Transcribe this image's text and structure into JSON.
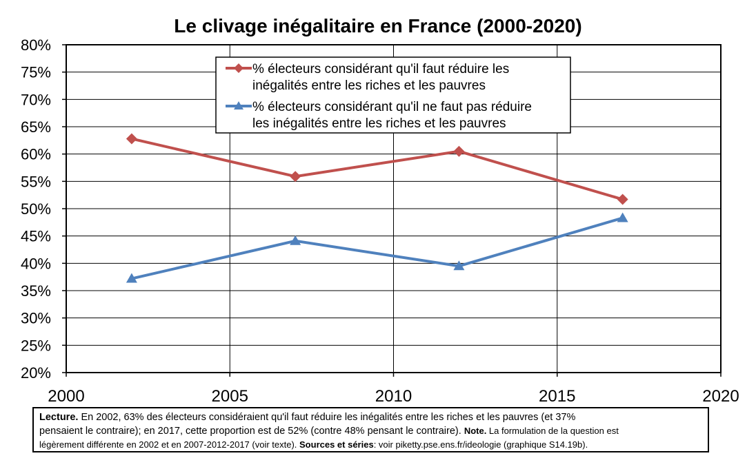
{
  "chart_data": {
    "type": "line",
    "title": "Le clivage inégalitaire en France (2000-2020)",
    "xlim": [
      2000,
      2020
    ],
    "ylim": [
      20,
      80
    ],
    "x_ticks": [
      "2000",
      "2005",
      "2010",
      "2015",
      "2020"
    ],
    "y_ticks": [
      "20%",
      "25%",
      "30%",
      "35%",
      "40%",
      "45%",
      "50%",
      "55%",
      "60%",
      "65%",
      "70%",
      "75%",
      "80%"
    ],
    "grid": true,
    "legend_position": "top-center",
    "series": [
      {
        "name": "% électeurs considérant qu'il faut réduire les inégalités entre les riches et les pauvres",
        "name_lines": [
          "% électeurs considérant qu'il faut réduire les",
          "inégalités entre les riches et les pauvres"
        ],
        "marker": "diamond",
        "color": "#C0504D",
        "x": [
          2002,
          2007,
          2012,
          2017
        ],
        "y": [
          62.8,
          55.9,
          60.5,
          51.7
        ]
      },
      {
        "name": "% électeurs considérant qu'il ne faut pas réduire les inégalités entre les riches et les pauvres",
        "name_lines": [
          "% électeurs considérant qu'il ne faut pas réduire",
          "les inégalités entre les riches et les pauvres"
        ],
        "marker": "triangle",
        "color": "#4F81BD",
        "x": [
          2002,
          2007,
          2012,
          2017
        ],
        "y": [
          37.2,
          44.1,
          39.5,
          48.3
        ]
      }
    ]
  },
  "note": {
    "lecture_label": "Lecture.",
    "lecture_text": " En 2002, 63% des électeurs considéraient qu'il faut réduire les inégalités entre les riches et les pauvres (et 37%",
    "line2": "pensaient le contraire); en 2017, cette proportion est de 52% (contre 48% pensant le contraire). ",
    "note_label": "Note.",
    "note_text": " La formulation de la question est",
    "line3": "légèrement différente en 2002 et en 2007-2012-2017 (voir texte). ",
    "sources_label": "Sources et séries",
    "sources_text": ": voir piketty.pse.ens.fr/ideologie (graphique S14.19b)."
  }
}
